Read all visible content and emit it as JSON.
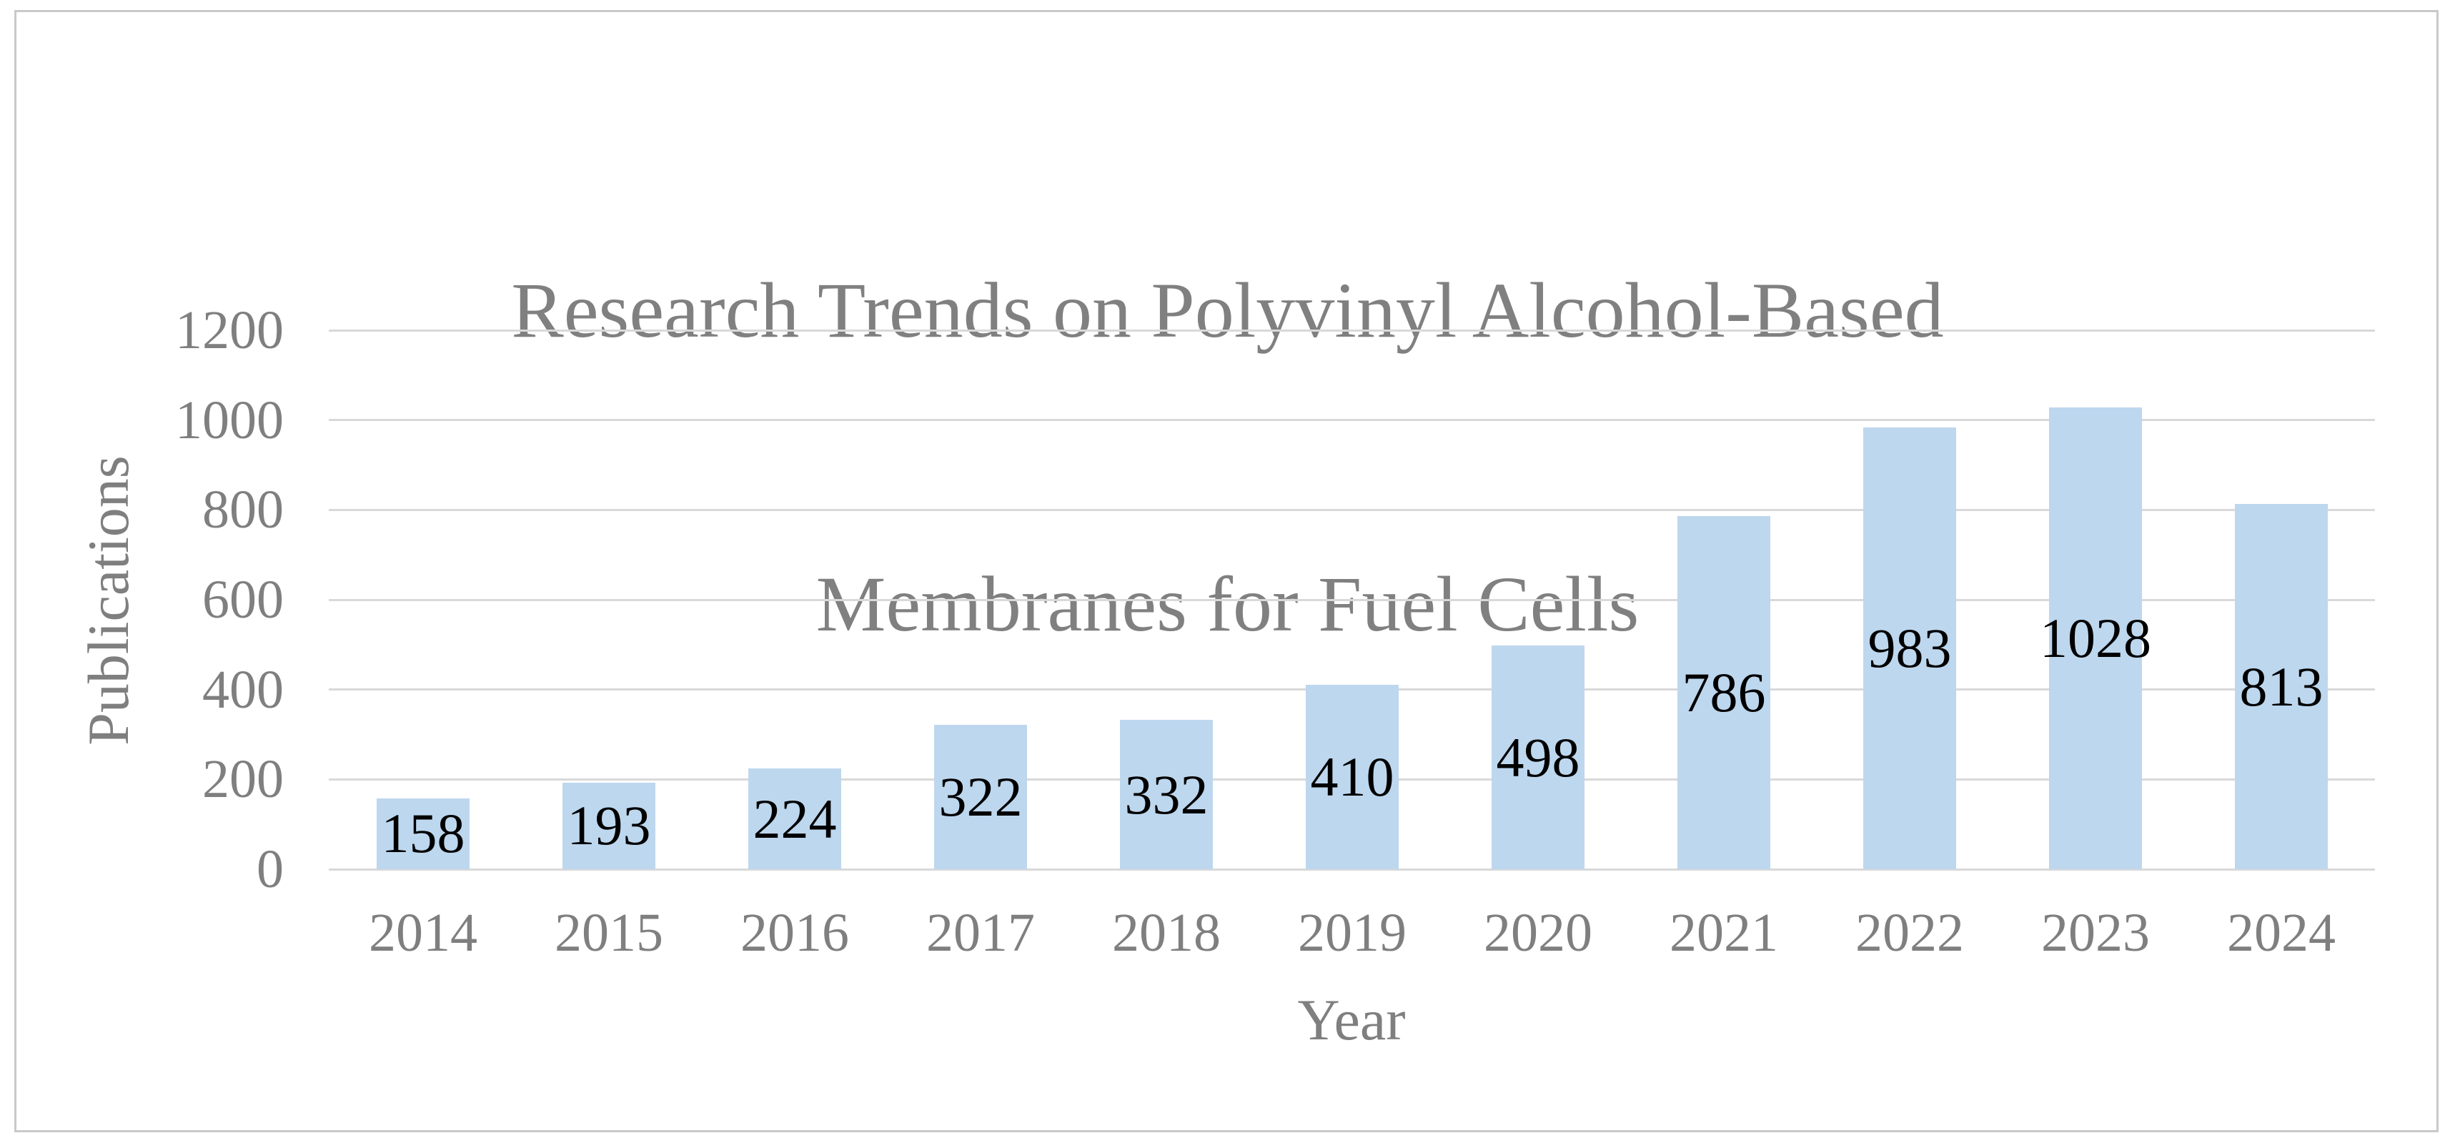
{
  "chart_data": {
    "type": "bar",
    "title": "Research Trends on Polyvinyl Alcohol-Based Membranes for Fuel Cells",
    "title_lines": [
      "Research Trends on Polyvinyl Alcohol-Based",
      "Membranes for Fuel Cells"
    ],
    "categories": [
      "2014",
      "2015",
      "2016",
      "2017",
      "2018",
      "2019",
      "2020",
      "2021",
      "2022",
      "2023",
      "2024"
    ],
    "values": [
      158,
      193,
      224,
      322,
      332,
      410,
      498,
      786,
      983,
      1028,
      813
    ],
    "series_name": "Publications",
    "xlabel": "Year",
    "ylabel": "Publications",
    "ylim": [
      0,
      1200
    ],
    "ytick_step": 200,
    "yticks": [
      0,
      200,
      400,
      600,
      800,
      1000,
      1200
    ],
    "grid": true,
    "legend": "none",
    "data_label_position": "center-inside",
    "colors": {
      "bar_fill": "#BDD7EE",
      "gridline": "#D9D9D9",
      "axis_text": "#7F7F7F",
      "title_text": "#808080",
      "data_label": "#000000",
      "frame_border": "#C9C9C9",
      "background": "#FFFFFF"
    }
  }
}
